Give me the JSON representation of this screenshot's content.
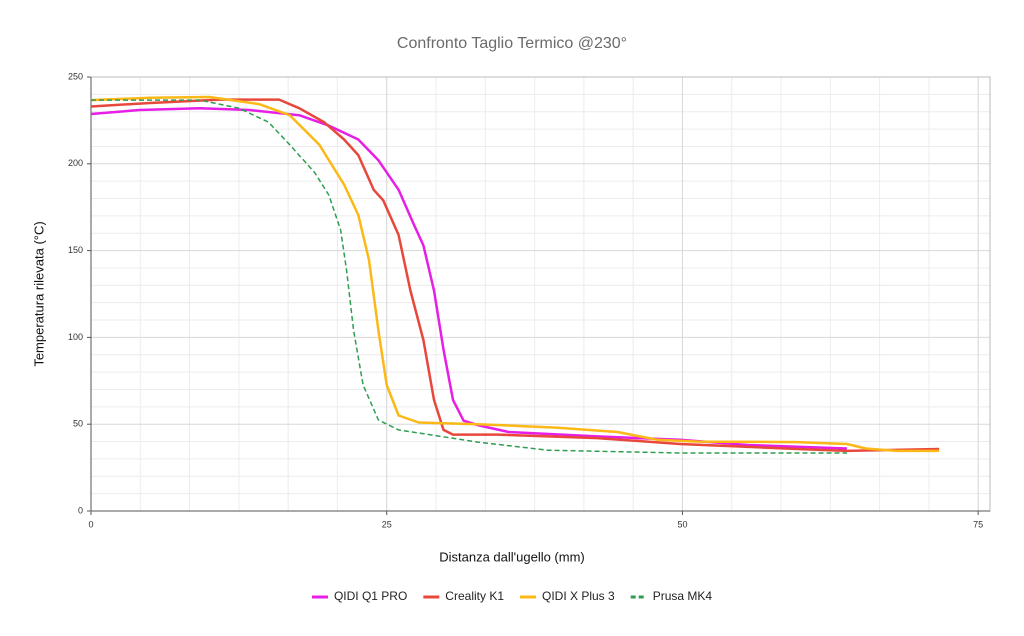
{
  "chart_data": {
    "type": "line",
    "title": "Confronto Taglio Termico @230°",
    "x_label": "Distanza dall'ugello (mm)",
    "y_label": "Temperatura rilevata (°C)",
    "xlim": [
      0,
      76
    ],
    "xticks": [
      0,
      25,
      50,
      75
    ],
    "ylim": [
      0,
      250
    ],
    "yticks": [
      0,
      50,
      100,
      150,
      200,
      250
    ],
    "grid": true,
    "legend": "bottom",
    "series": [
      {
        "name": "QIDI Q1 PRO",
        "color": "#e61ee6",
        "dashed": false,
        "x": [
          0,
          4.1,
          9.2,
          13.4,
          17.6,
          20.1,
          22.6,
          24.3,
          26,
          27.3,
          28.1,
          29,
          29.8,
          30.6,
          31.5,
          32.7,
          35.3,
          42.8,
          49.8,
          55.5,
          63.9
        ],
        "values": [
          228.7,
          231,
          232,
          231,
          228,
          222,
          214,
          202,
          185,
          165,
          153,
          127,
          93,
          64,
          52,
          49.5,
          45.5,
          43,
          41,
          38,
          36
        ]
      },
      {
        "name": "Creality K1",
        "color": "#e8473b",
        "dashed": false,
        "x": [
          0,
          5,
          10.9,
          15.9,
          17.6,
          19.7,
          21.4,
          22.6,
          23.9,
          24.7,
          26,
          27,
          28.1,
          29,
          29.8,
          30.6,
          34.4,
          42.8,
          49.8,
          59.7,
          63.9,
          71.7
        ],
        "values": [
          233,
          235,
          237,
          237,
          232,
          224,
          214,
          205,
          185,
          179,
          159,
          127,
          98.5,
          64,
          46.7,
          44,
          44,
          42,
          38.6,
          35.7,
          34.6,
          35.7
        ]
      },
      {
        "name": "QIDI X Plus 3",
        "color": "#fbb817",
        "dashed": false,
        "x": [
          0,
          5,
          10,
          14.2,
          16.8,
          19.3,
          21.4,
          22.6,
          23.5,
          24.3,
          25,
          26,
          27.7,
          32.7,
          39.5,
          44.5,
          47.9,
          51.3,
          59.7,
          63.9,
          65.5,
          68.1,
          71.7
        ],
        "values": [
          236.7,
          238,
          238.5,
          234.4,
          228,
          211,
          188,
          170.5,
          144.6,
          104,
          72.6,
          55,
          51,
          50,
          48,
          45.5,
          41,
          40,
          39.7,
          38.6,
          36,
          34.6,
          34.6
        ]
      },
      {
        "name": "Prusa MK4",
        "color": "#2e9e4f",
        "dashed": true,
        "x": [
          0,
          9.2,
          12.5,
          15,
          16.8,
          18.9,
          20.1,
          21.1,
          21.6,
          22.2,
          23,
          24.3,
          26,
          32.7,
          38.6,
          49.8,
          63.9
        ],
        "values": [
          236.7,
          236.7,
          232,
          224,
          211,
          195,
          182,
          162,
          139,
          104,
          72.6,
          52.4,
          46.7,
          39.7,
          35,
          33.4,
          33.4
        ]
      }
    ]
  }
}
